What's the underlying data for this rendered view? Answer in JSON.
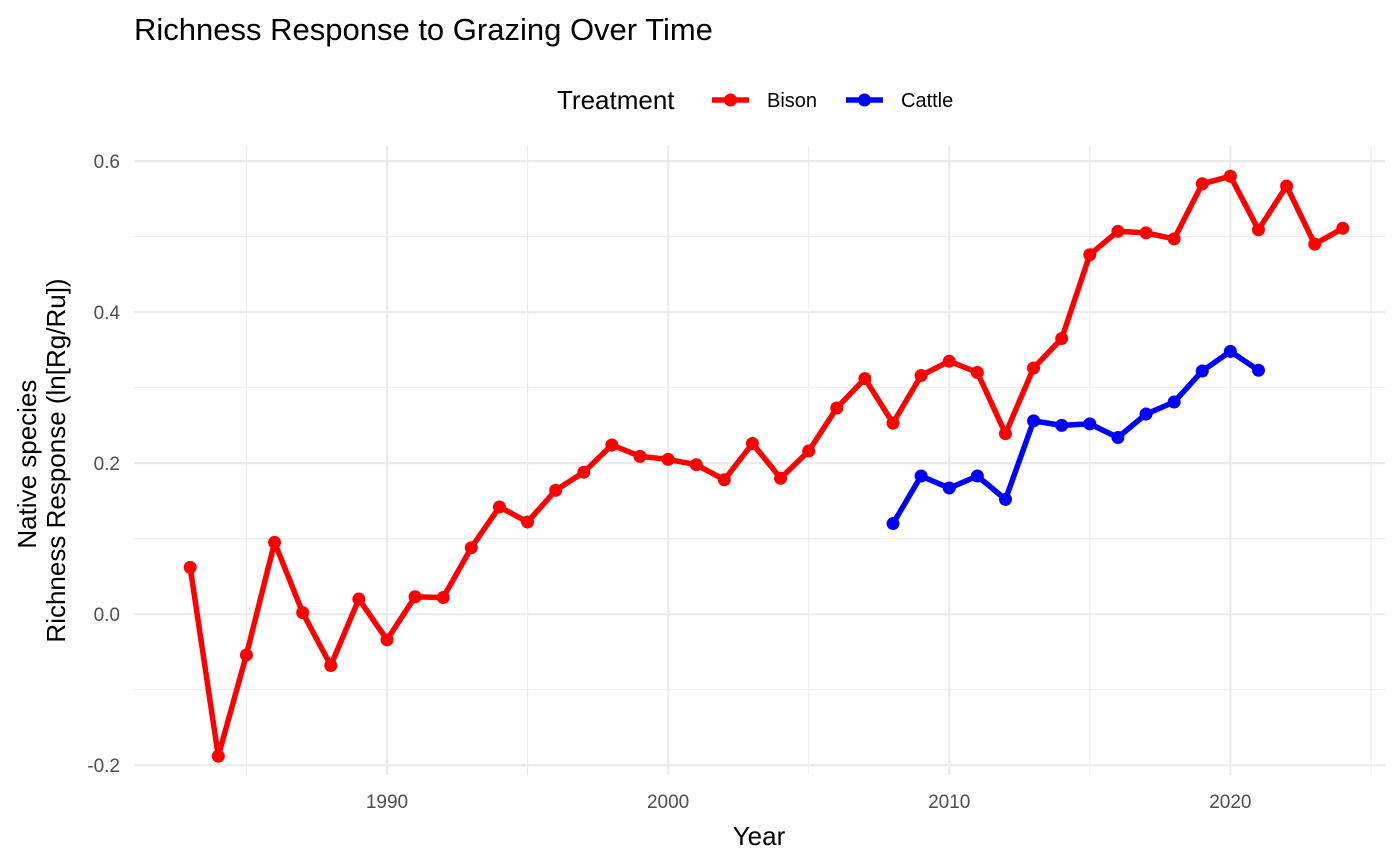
{
  "chart_data": {
    "type": "line",
    "title": "Richness Response to Grazing Over Time",
    "xlabel": "Year",
    "ylabel_lines": [
      "Native species",
      "Richness Response (ln[Rg/Ru])"
    ],
    "legend": {
      "title": "Treatment",
      "placement": "top"
    },
    "xlim": [
      1981,
      2025.5
    ],
    "ylim": [
      -0.213,
      0.62
    ],
    "x_ticks": [
      1990,
      2000,
      2010,
      2020
    ],
    "x_tick_labels": [
      "1990",
      "2000",
      "2010",
      "2020"
    ],
    "x_minor_ticks": [
      1985,
      1995,
      2005,
      2015,
      2025
    ],
    "y_ticks": [
      -0.2,
      0.0,
      0.2,
      0.4,
      0.6
    ],
    "y_tick_labels": [
      "-0.2",
      "0.0",
      "0.2",
      "0.4",
      "0.6"
    ],
    "y_minor_ticks": [
      -0.1,
      0.1,
      0.3,
      0.5
    ],
    "grid": true,
    "series": [
      {
        "name": "Bison",
        "color": "#ff0000",
        "x": [
          1983,
          1984,
          1985,
          1986,
          1987,
          1988,
          1989,
          1990,
          1991,
          1992,
          1993,
          1994,
          1995,
          1996,
          1997,
          1998,
          1999,
          2000,
          2001,
          2002,
          2003,
          2004,
          2005,
          2006,
          2007,
          2008,
          2009,
          2010,
          2011,
          2012,
          2013,
          2014,
          2015,
          2016,
          2017,
          2018,
          2019,
          2020,
          2021,
          2022,
          2023,
          2024
        ],
        "y": [
          0.062,
          -0.188,
          -0.054,
          0.095,
          0.002,
          -0.068,
          0.02,
          -0.034,
          0.023,
          0.022,
          0.088,
          0.142,
          0.122,
          0.164,
          0.188,
          0.224,
          0.209,
          0.205,
          0.198,
          0.178,
          0.226,
          0.18,
          0.216,
          0.273,
          0.312,
          0.253,
          0.316,
          0.335,
          0.32,
          0.239,
          0.326,
          0.365,
          0.476,
          0.507,
          0.505,
          0.497,
          0.57,
          0.58,
          0.509,
          0.567,
          0.49,
          0.511
        ]
      },
      {
        "name": "Cattle",
        "color": "#0000ff",
        "x": [
          2008,
          2009,
          2010,
          2011,
          2012,
          2013,
          2014,
          2015,
          2016,
          2017,
          2018,
          2019,
          2020,
          2021
        ],
        "y": [
          0.12,
          0.183,
          0.167,
          0.183,
          0.152,
          0.256,
          0.25,
          0.252,
          0.234,
          0.265,
          0.281,
          0.322,
          0.348,
          0.323
        ]
      }
    ]
  }
}
